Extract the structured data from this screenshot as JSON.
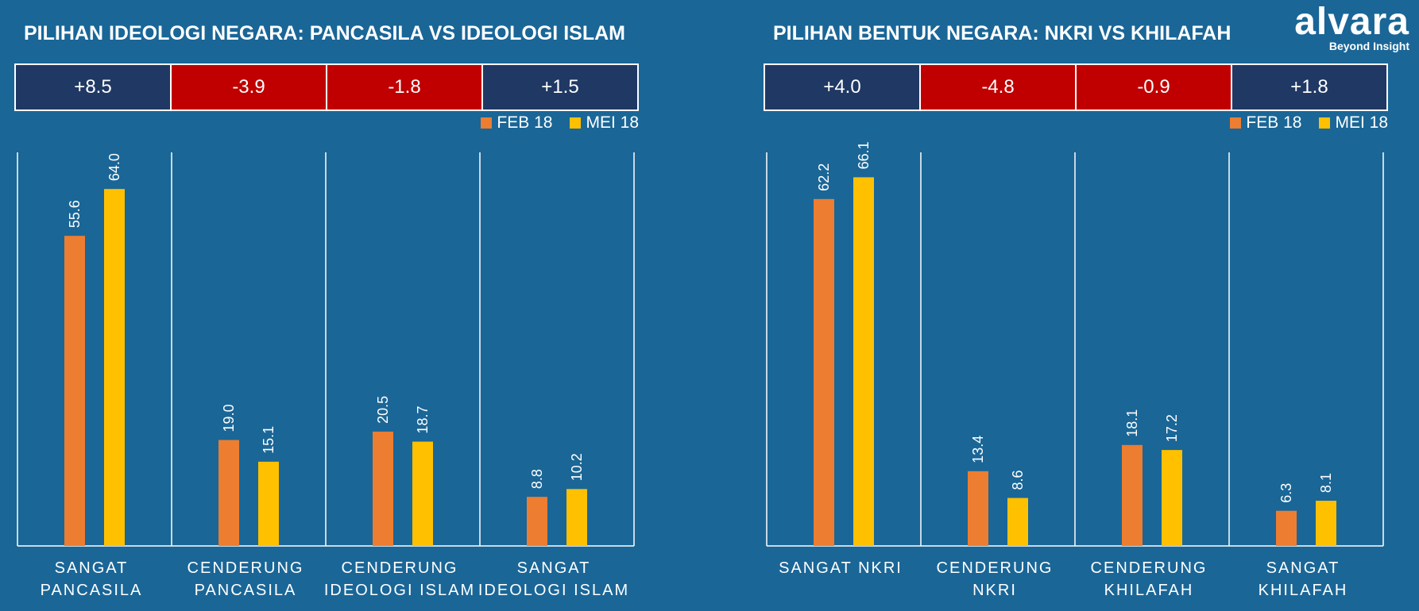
{
  "logo": {
    "name": "alvara",
    "tagline": "Beyond Insight"
  },
  "colors": {
    "background": "#1a6697",
    "feb": "#ed7d31",
    "mei": "#ffc000",
    "positive": "#203864",
    "negative": "#c00000"
  },
  "legend": {
    "feb": "FEB 18",
    "mei": "MEI 18"
  },
  "chart_data": [
    {
      "type": "bar",
      "title": "PILIHAN IDEOLOGI NEGARA: PANCASILA VS IDEOLOGI ISLAM",
      "differences": [
        "+8.5",
        "-3.9",
        "-1.8",
        "+1.5"
      ],
      "categories": [
        [
          "SANGAT",
          "PANCASILA"
        ],
        [
          "CENDERUNG",
          "PANCASILA"
        ],
        [
          "CENDERUNG",
          "IDEOLOGI ISLAM"
        ],
        [
          "SANGAT",
          "IDEOLOGI ISLAM"
        ]
      ],
      "series": [
        {
          "name": "FEB 18",
          "values": [
            55.6,
            19.0,
            20.5,
            8.8
          ]
        },
        {
          "name": "MEI 18",
          "values": [
            64.0,
            15.1,
            18.7,
            10.2
          ]
        }
      ],
      "ylim": [
        0,
        70
      ]
    },
    {
      "type": "bar",
      "title": "PILIHAN BENTUK NEGARA: NKRI VS KHILAFAH",
      "differences": [
        "+4.0",
        "-4.8",
        "-0.9",
        "+1.8"
      ],
      "categories": [
        [
          "SANGAT NKRI"
        ],
        [
          "CENDERUNG",
          "NKRI"
        ],
        [
          "CENDERUNG",
          "KHILAFAH"
        ],
        [
          "SANGAT",
          "KHILAFAH"
        ]
      ],
      "series": [
        {
          "name": "FEB 18",
          "values": [
            62.2,
            13.4,
            18.1,
            6.3
          ]
        },
        {
          "name": "MEI 18",
          "values": [
            66.1,
            8.6,
            17.2,
            8.1
          ]
        }
      ],
      "ylim": [
        0,
        70
      ]
    }
  ]
}
